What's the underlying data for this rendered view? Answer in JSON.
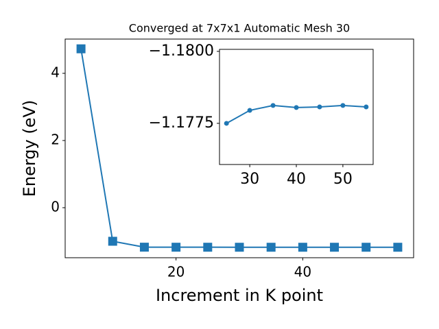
{
  "chart_data": [
    {
      "type": "line",
      "title": "Converged at 7x7x1 Automatic Mesh 30",
      "x_label": "Increment in K point",
      "y_label": "Energy (eV)",
      "x": [
        5,
        10,
        15,
        20,
        25,
        30,
        35,
        40,
        45,
        50,
        55
      ],
      "series": [
        {
          "color": "#1f77b4",
          "marker": "square",
          "values": [
            4.73,
            -1.0,
            -1.176,
            -1.1772,
            -1.1775,
            -1.17795,
            -1.17812,
            -1.17805,
            -1.17807,
            -1.17812,
            -1.17807
          ]
        }
      ],
      "xlim": [
        2.5,
        57.5
      ],
      "ylim": [
        -1.49,
        5.02
      ],
      "xticks": [
        20,
        40
      ],
      "yticks": [
        0,
        2,
        4
      ]
    },
    {
      "type": "line",
      "x": [
        25,
        30,
        35,
        40,
        45,
        50,
        55
      ],
      "series": [
        {
          "color": "#1f77b4",
          "marker": "circle",
          "values": [
            -1.1775,
            -1.17795,
            -1.17812,
            -1.17805,
            -1.17807,
            -1.17812,
            -1.17807
          ]
        }
      ],
      "xlim": [
        23.5,
        56.5
      ],
      "ylim": [
        -1.17607,
        -1.18007
      ],
      "xticks": [
        30,
        40,
        50
      ],
      "yticks": [
        {
          "value": -1.18,
          "label": "−1.1800"
        },
        {
          "value": -1.1775,
          "label": "−1.1775"
        }
      ]
    }
  ]
}
